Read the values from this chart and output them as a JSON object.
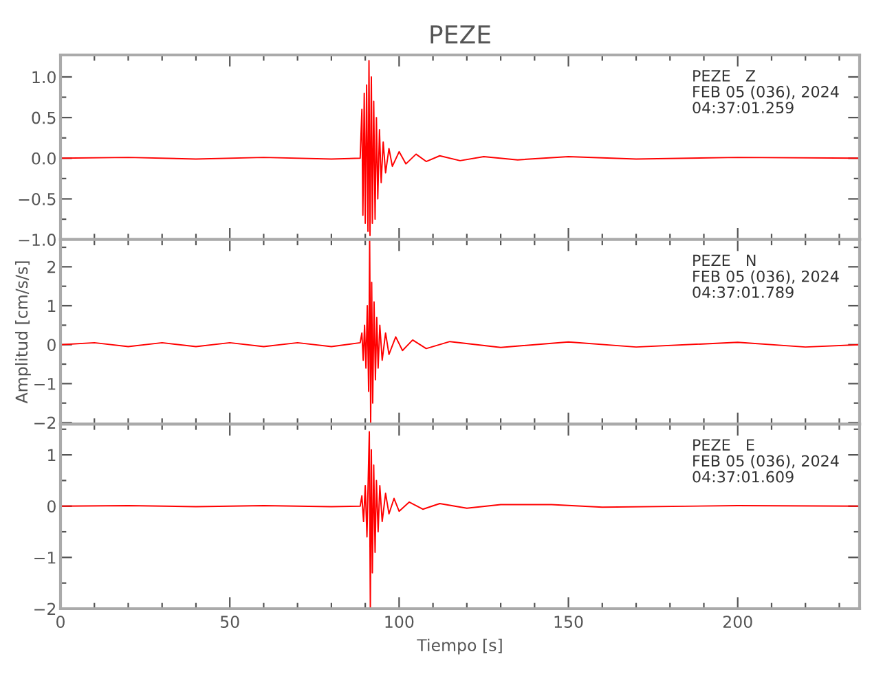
{
  "chart_data": [
    {
      "type": "line",
      "title": "PEZE",
      "tick_labels": "y",
      "grid": false,
      "marker": "none",
      "line_style": "solid",
      "xlim": [
        0,
        236
      ],
      "xticks": [
        0,
        {
          "value": 10,
          "label": null
        },
        {
          "value": 20,
          "label": null
        },
        {
          "value": 30,
          "label": null
        },
        {
          "value": 40,
          "label": null
        },
        50,
        {
          "value": 60,
          "label": null
        },
        {
          "value": 70,
          "label": null
        },
        {
          "value": 80,
          "label": null
        },
        {
          "value": 90,
          "label": null
        },
        100,
        {
          "value": 110,
          "label": null
        },
        {
          "value": 120,
          "label": null
        },
        {
          "value": 130,
          "label": null
        },
        {
          "value": 140,
          "label": null
        },
        150,
        {
          "value": 160,
          "label": null
        },
        {
          "value": 170,
          "label": null
        },
        {
          "value": 180,
          "label": null
        },
        {
          "value": 190,
          "label": null
        },
        200,
        {
          "value": 210,
          "label": null
        },
        {
          "value": 220,
          "label": null
        },
        {
          "value": 230,
          "label": null
        }
      ],
      "ylim": [
        -1.0,
        1.27
      ],
      "yticks": [
        {
          "value": -1.0,
          "label": "−1.0"
        },
        {
          "value": -0.75,
          "label": null
        },
        {
          "value": -0.5,
          "label": "−0.5"
        },
        {
          "value": -0.25,
          "label": null
        },
        {
          "value": 0.0,
          "label": "0.0"
        },
        {
          "value": 0.25,
          "label": null
        },
        {
          "value": 0.5,
          "label": "0.5"
        },
        {
          "value": 0.75,
          "label": null
        },
        {
          "value": 1.0,
          "label": "1.0"
        }
      ],
      "annotations": [
        "PEZE   Z\nFEB 05 (036), 2024\n04:37:01.259"
      ],
      "series": [
        {
          "color": "#ff0000",
          "x": [
            0,
            20,
            40,
            60,
            80,
            88.5,
            89,
            89.3,
            89.7,
            90,
            90.4,
            90.8,
            91.1,
            91.4,
            91.8,
            92.1,
            92.5,
            92.9,
            93.3,
            93.7,
            94.2,
            94.7,
            95.3,
            96,
            97,
            98,
            100,
            102,
            105,
            108,
            112,
            118,
            125,
            135,
            150,
            170,
            200,
            236
          ],
          "values": [
            0,
            0.01,
            -0.01,
            0.01,
            -0.01,
            0,
            0.6,
            -0.7,
            0.8,
            -0.8,
            0.9,
            -0.9,
            1.2,
            -0.95,
            1.0,
            -0.8,
            0.7,
            -0.75,
            0.5,
            -0.5,
            0.35,
            -0.3,
            0.2,
            -0.18,
            0.12,
            -0.1,
            0.08,
            -0.07,
            0.05,
            -0.04,
            0.03,
            -0.03,
            0.02,
            -0.02,
            0.02,
            -0.01,
            0.01,
            0
          ]
        }
      ]
    },
    {
      "type": "line",
      "ylabel": "Amplitud [cm/s/s]",
      "tick_labels": "y",
      "grid": false,
      "marker": "none",
      "line_style": "solid",
      "xlim": [
        0,
        236
      ],
      "xticks": [
        0,
        {
          "value": 10,
          "label": null
        },
        {
          "value": 20,
          "label": null
        },
        {
          "value": 30,
          "label": null
        },
        {
          "value": 40,
          "label": null
        },
        50,
        {
          "value": 60,
          "label": null
        },
        {
          "value": 70,
          "label": null
        },
        {
          "value": 80,
          "label": null
        },
        {
          "value": 90,
          "label": null
        },
        100,
        {
          "value": 110,
          "label": null
        },
        {
          "value": 120,
          "label": null
        },
        {
          "value": 130,
          "label": null
        },
        {
          "value": 140,
          "label": null
        },
        150,
        {
          "value": 160,
          "label": null
        },
        {
          "value": 170,
          "label": null
        },
        {
          "value": 180,
          "label": null
        },
        {
          "value": 190,
          "label": null
        },
        200,
        {
          "value": 210,
          "label": null
        },
        {
          "value": 220,
          "label": null
        },
        {
          "value": 230,
          "label": null
        }
      ],
      "ylim": [
        -2.04,
        2.7
      ],
      "yticks": [
        {
          "value": -2,
          "label": "−2"
        },
        {
          "value": -1.5,
          "label": null
        },
        {
          "value": -1,
          "label": "−1"
        },
        {
          "value": -0.5,
          "label": null
        },
        0,
        {
          "value": 0.5,
          "label": null
        },
        1,
        {
          "value": 1.5,
          "label": null
        },
        2,
        {
          "value": 2.5,
          "label": null
        }
      ],
      "annotations": [
        "PEZE   N\nFEB 05 (036), 2024\n04:37:01.789"
      ],
      "series": [
        {
          "color": "#ff0000",
          "x": [
            0,
            10,
            20,
            30,
            40,
            50,
            60,
            70,
            80,
            88.5,
            89,
            89.4,
            89.8,
            90.2,
            90.6,
            91,
            91.3,
            91.6,
            91.9,
            92.2,
            92.6,
            93,
            93.4,
            93.8,
            94.3,
            95,
            96,
            97,
            99,
            101,
            104,
            108,
            115,
            130,
            150,
            170,
            200,
            220,
            236
          ],
          "values": [
            0,
            0.05,
            -0.05,
            0.05,
            -0.05,
            0.05,
            -0.05,
            0.05,
            -0.05,
            0.05,
            0.3,
            -0.4,
            0.5,
            -0.6,
            1.0,
            -1.2,
            2.7,
            -2.0,
            1.6,
            -1.5,
            1.1,
            -0.9,
            0.7,
            -0.6,
            0.5,
            -0.4,
            0.3,
            -0.25,
            0.2,
            -0.15,
            0.12,
            -0.1,
            0.08,
            -0.07,
            0.07,
            -0.06,
            0.06,
            -0.06,
            0
          ]
        }
      ]
    },
    {
      "type": "line",
      "xlabel": "Tiempo [s]",
      "grid": false,
      "marker": "none",
      "line_style": "solid",
      "xlim": [
        0,
        236
      ],
      "xticks": [
        0,
        {
          "value": 10,
          "label": null
        },
        {
          "value": 20,
          "label": null
        },
        {
          "value": 30,
          "label": null
        },
        {
          "value": 40,
          "label": null
        },
        50,
        {
          "value": 60,
          "label": null
        },
        {
          "value": 70,
          "label": null
        },
        {
          "value": 80,
          "label": null
        },
        {
          "value": 90,
          "label": null
        },
        100,
        {
          "value": 110,
          "label": null
        },
        {
          "value": 120,
          "label": null
        },
        {
          "value": 130,
          "label": null
        },
        {
          "value": 140,
          "label": null
        },
        150,
        {
          "value": 160,
          "label": null
        },
        {
          "value": 170,
          "label": null
        },
        {
          "value": 180,
          "label": null
        },
        {
          "value": 190,
          "label": null
        },
        200,
        {
          "value": 210,
          "label": null
        },
        {
          "value": 220,
          "label": null
        },
        {
          "value": 230,
          "label": null
        }
      ],
      "ylim": [
        -2,
        1.6
      ],
      "yticks": [
        {
          "value": -2,
          "label": "−2"
        },
        {
          "value": -1.5,
          "label": null
        },
        {
          "value": -1,
          "label": "−1"
        },
        {
          "value": -0.5,
          "label": null
        },
        0,
        {
          "value": 0.5,
          "label": null
        },
        1,
        {
          "value": 1.5,
          "label": null
        }
      ],
      "annotations": [
        "PEZE   E\nFEB 05 (036), 2024\n04:37:01.609"
      ],
      "series": [
        {
          "color": "#ff0000",
          "x": [
            0,
            20,
            40,
            60,
            80,
            88.5,
            89,
            89.5,
            90,
            90.5,
            91,
            91.2,
            91.5,
            91.8,
            92.1,
            92.5,
            92.9,
            93.3,
            93.8,
            94.3,
            95,
            96,
            97,
            98.5,
            100,
            103,
            107,
            112,
            120,
            130,
            145,
            160,
            200,
            236
          ],
          "values": [
            0,
            0.01,
            -0.01,
            0.01,
            -0.01,
            0,
            0.2,
            -0.3,
            0.4,
            -0.6,
            0.9,
            1.45,
            -2.0,
            1.1,
            -1.3,
            0.8,
            -0.9,
            0.5,
            -0.5,
            0.4,
            -0.3,
            0.25,
            -0.15,
            0.15,
            -0.1,
            0.08,
            -0.06,
            0.05,
            -0.04,
            0.03,
            0.03,
            -0.02,
            0.01,
            0
          ]
        }
      ]
    }
  ]
}
